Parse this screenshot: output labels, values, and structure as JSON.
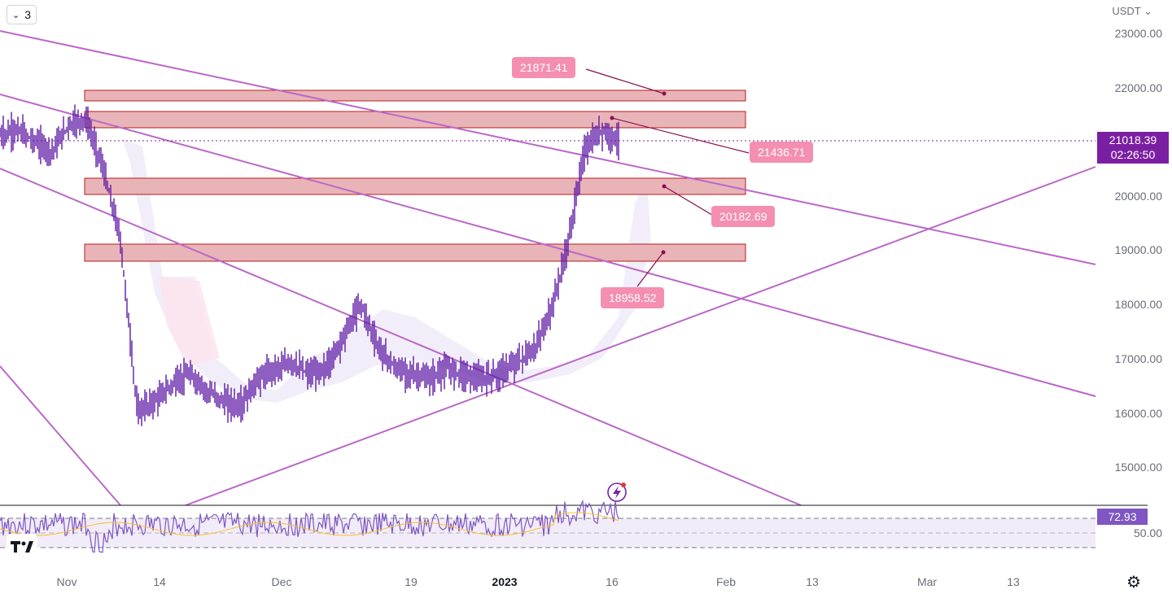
{
  "toolbar": {
    "indicators_count": "3"
  },
  "price_scale": {
    "currency": "USDT",
    "labels": [
      "23000.00",
      "22000.00",
      "20000.00",
      "19000.00",
      "18000.00",
      "17000.00",
      "16000.00",
      "15000.00"
    ]
  },
  "current_price": {
    "value": "21018.39",
    "countdown": "02:26:50",
    "color": "#7b1fa2"
  },
  "rsi": {
    "value": "72.93",
    "mid_label": "50.00",
    "color": "#7e57c2"
  },
  "time_axis": {
    "labels": [
      {
        "text": "Nov",
        "bold": false
      },
      {
        "text": "14",
        "bold": false
      },
      {
        "text": "Dec",
        "bold": false
      },
      {
        "text": "19",
        "bold": false
      },
      {
        "text": "2023",
        "bold": true
      },
      {
        "text": "16",
        "bold": false
      },
      {
        "text": "Feb",
        "bold": false
      },
      {
        "text": "13",
        "bold": false
      },
      {
        "text": "Mar",
        "bold": false
      },
      {
        "text": "13",
        "bold": false
      }
    ]
  },
  "levels": [
    {
      "label": "21871.41",
      "color": "#f48fb1"
    },
    {
      "label": "21436.71",
      "color": "#f48fb1"
    },
    {
      "label": "20182.69",
      "color": "#f48fb1"
    },
    {
      "label": "18958.52",
      "color": "#f48fb1"
    }
  ],
  "colors": {
    "trendline": "#ba68c8",
    "candles": "#5e1aa6",
    "zone_fill": "#e8b4b8",
    "zone_border": "#b71c1c"
  },
  "icons": {
    "logo": "tradingview-logo-icon",
    "settings": "gear-icon",
    "chevron": "chevron-down-icon"
  },
  "chart_data": {
    "type": "candlestick",
    "x_range": [
      "Nov",
      "Mar 13"
    ],
    "ylim": [
      15000,
      23000
    ],
    "series": [
      {
        "values": [
          21100,
          21200,
          21000,
          20800,
          21300,
          21400,
          20500,
          19200,
          16000,
          16200,
          16500,
          16700,
          16400,
          16200,
          16100,
          16600,
          16800,
          16900,
          16700,
          16800,
          17400,
          18000,
          17200,
          16800,
          16700,
          16600,
          16800,
          16700,
          16600,
          16700,
          16900,
          17100,
          17800,
          19000,
          20800,
          21200,
          21018
        ]
      }
    ],
    "annotations": [
      "21871.41",
      "21436.71",
      "20182.69",
      "18958.52"
    ]
  }
}
